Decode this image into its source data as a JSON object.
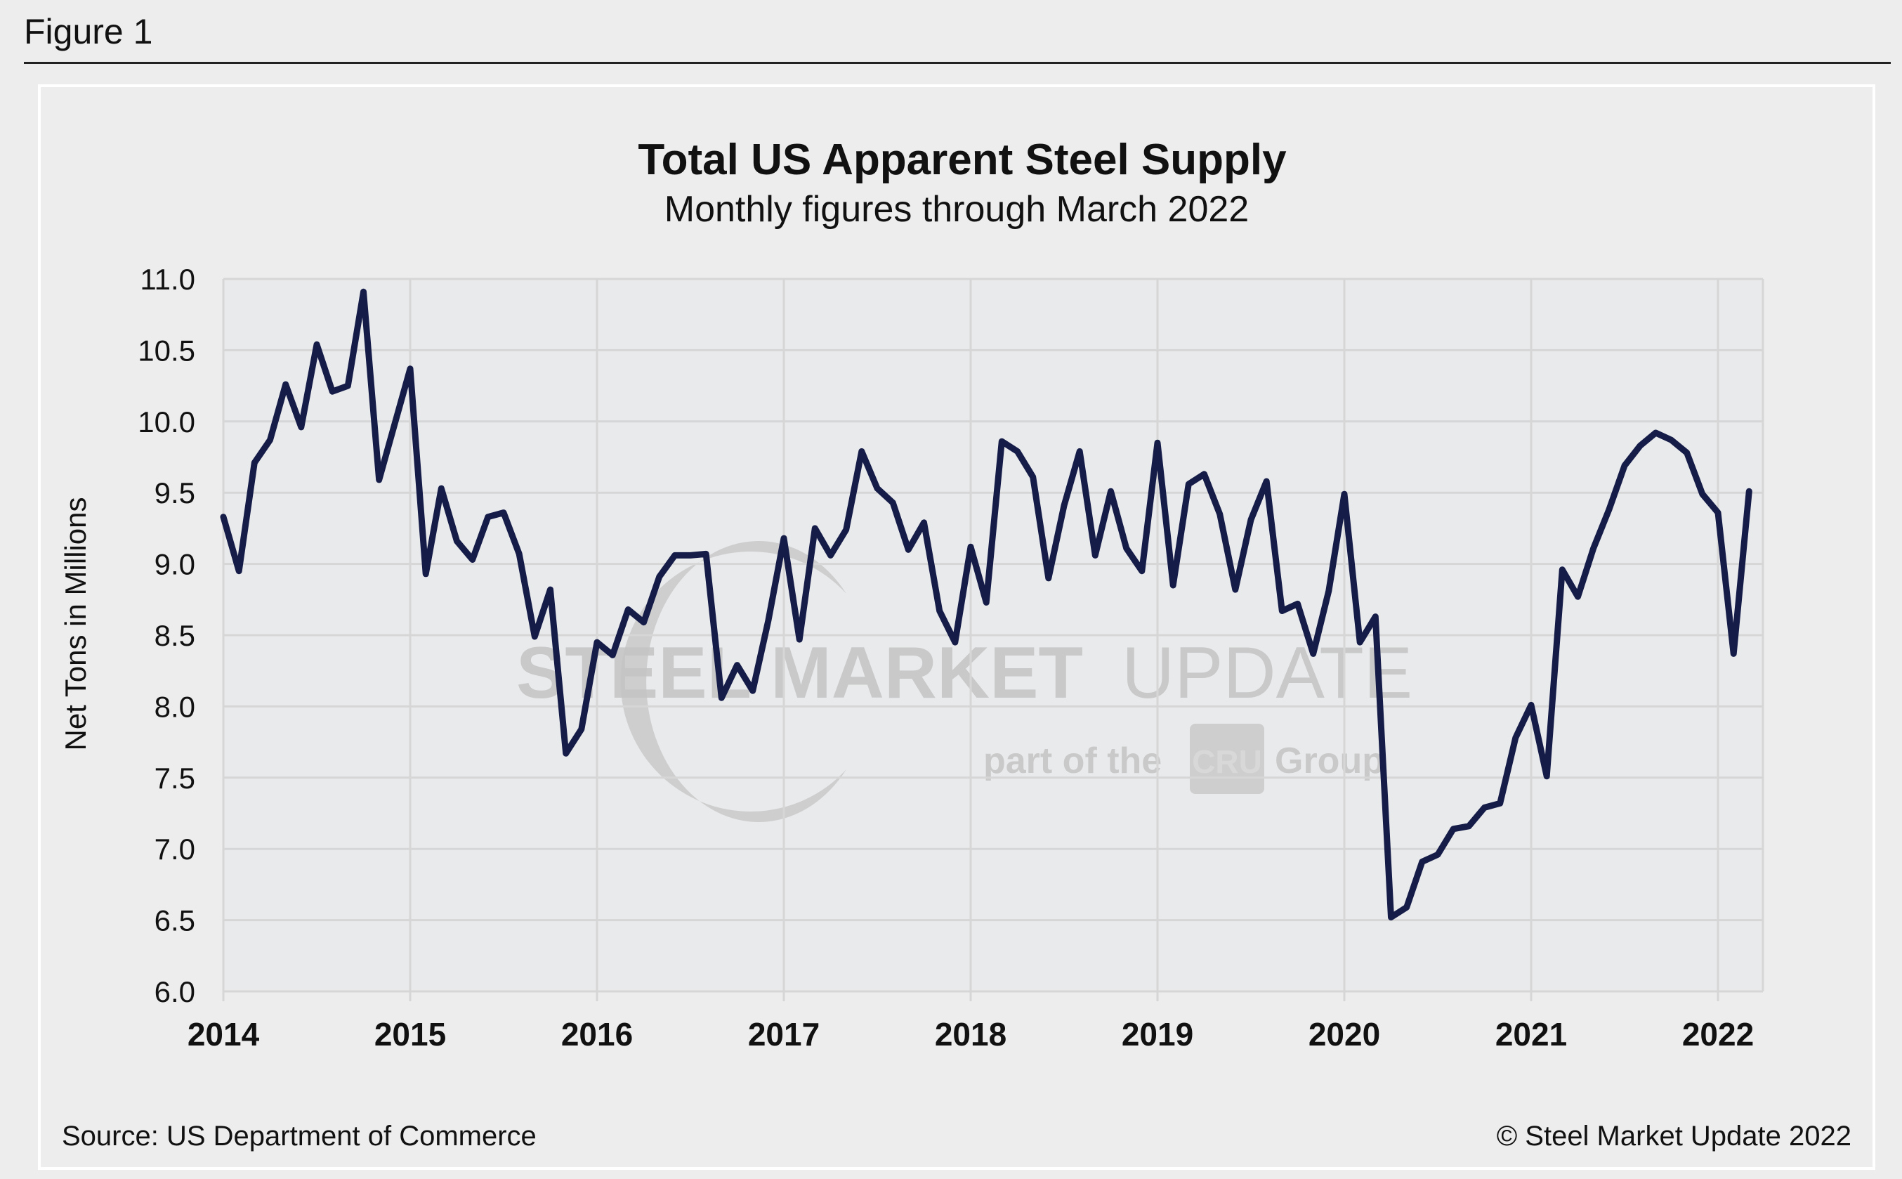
{
  "figure_label": "Figure 1",
  "source_text": "Source: US Department of Commerce",
  "copyright_text": "© Steel Market Update 2022",
  "watermark": {
    "brand_bold": "STEEL MARKET",
    "brand_light": "UPDATE",
    "tagline_pre": "part of the",
    "tagline_logo": "CRU",
    "tagline_post": "Group"
  },
  "colors": {
    "line": "#151c48",
    "plot_bg": "#e9eaec",
    "grid": "#d6d6d6",
    "watermark": "#c4c4c4"
  },
  "chart_data": {
    "type": "line",
    "title": "Total US Apparent Steel Supply",
    "subtitle": "Monthly figures through March 2022",
    "xlabel": "",
    "ylabel": "Net Tons in Millions",
    "ylim": [
      6.0,
      11.0
    ],
    "yticks": [
      "6.0",
      "6.5",
      "7.0",
      "7.5",
      "8.0",
      "8.5",
      "9.0",
      "9.5",
      "10.0",
      "10.5",
      "11.0"
    ],
    "xticks": [
      "2014",
      "2015",
      "2016",
      "2017",
      "2018",
      "2019",
      "2020",
      "2021",
      "2022"
    ],
    "x_start": "2014-01",
    "x_end": "2022-03",
    "grid": true,
    "legend": "none",
    "series": [
      {
        "name": "Total US Apparent Steel Supply",
        "values": [
          9.33,
          8.95,
          9.71,
          9.87,
          10.26,
          9.96,
          10.54,
          10.21,
          10.25,
          10.91,
          9.59,
          9.98,
          10.37,
          8.93,
          9.53,
          9.16,
          9.03,
          9.33,
          9.36,
          9.07,
          8.49,
          8.82,
          7.67,
          7.84,
          8.45,
          8.36,
          8.68,
          8.59,
          8.91,
          9.06,
          9.06,
          9.07,
          8.06,
          8.29,
          8.11,
          8.6,
          9.18,
          8.47,
          9.25,
          9.06,
          9.24,
          9.79,
          9.53,
          9.43,
          9.1,
          9.29,
          8.67,
          8.45,
          9.12,
          8.73,
          9.86,
          9.79,
          9.61,
          8.9,
          9.41,
          9.79,
          9.06,
          9.51,
          9.11,
          8.95,
          9.85,
          8.85,
          9.56,
          9.63,
          9.35,
          8.82,
          9.31,
          9.58,
          8.67,
          8.72,
          8.37,
          8.81,
          9.49,
          8.45,
          8.63,
          6.52,
          6.59,
          6.91,
          6.96,
          7.14,
          7.16,
          7.29,
          7.32,
          7.78,
          8.01,
          7.51,
          8.96,
          8.77,
          9.11,
          9.38,
          9.69,
          9.83,
          9.92,
          9.87,
          9.78,
          9.49,
          9.36,
          8.37,
          9.51
        ]
      }
    ]
  }
}
